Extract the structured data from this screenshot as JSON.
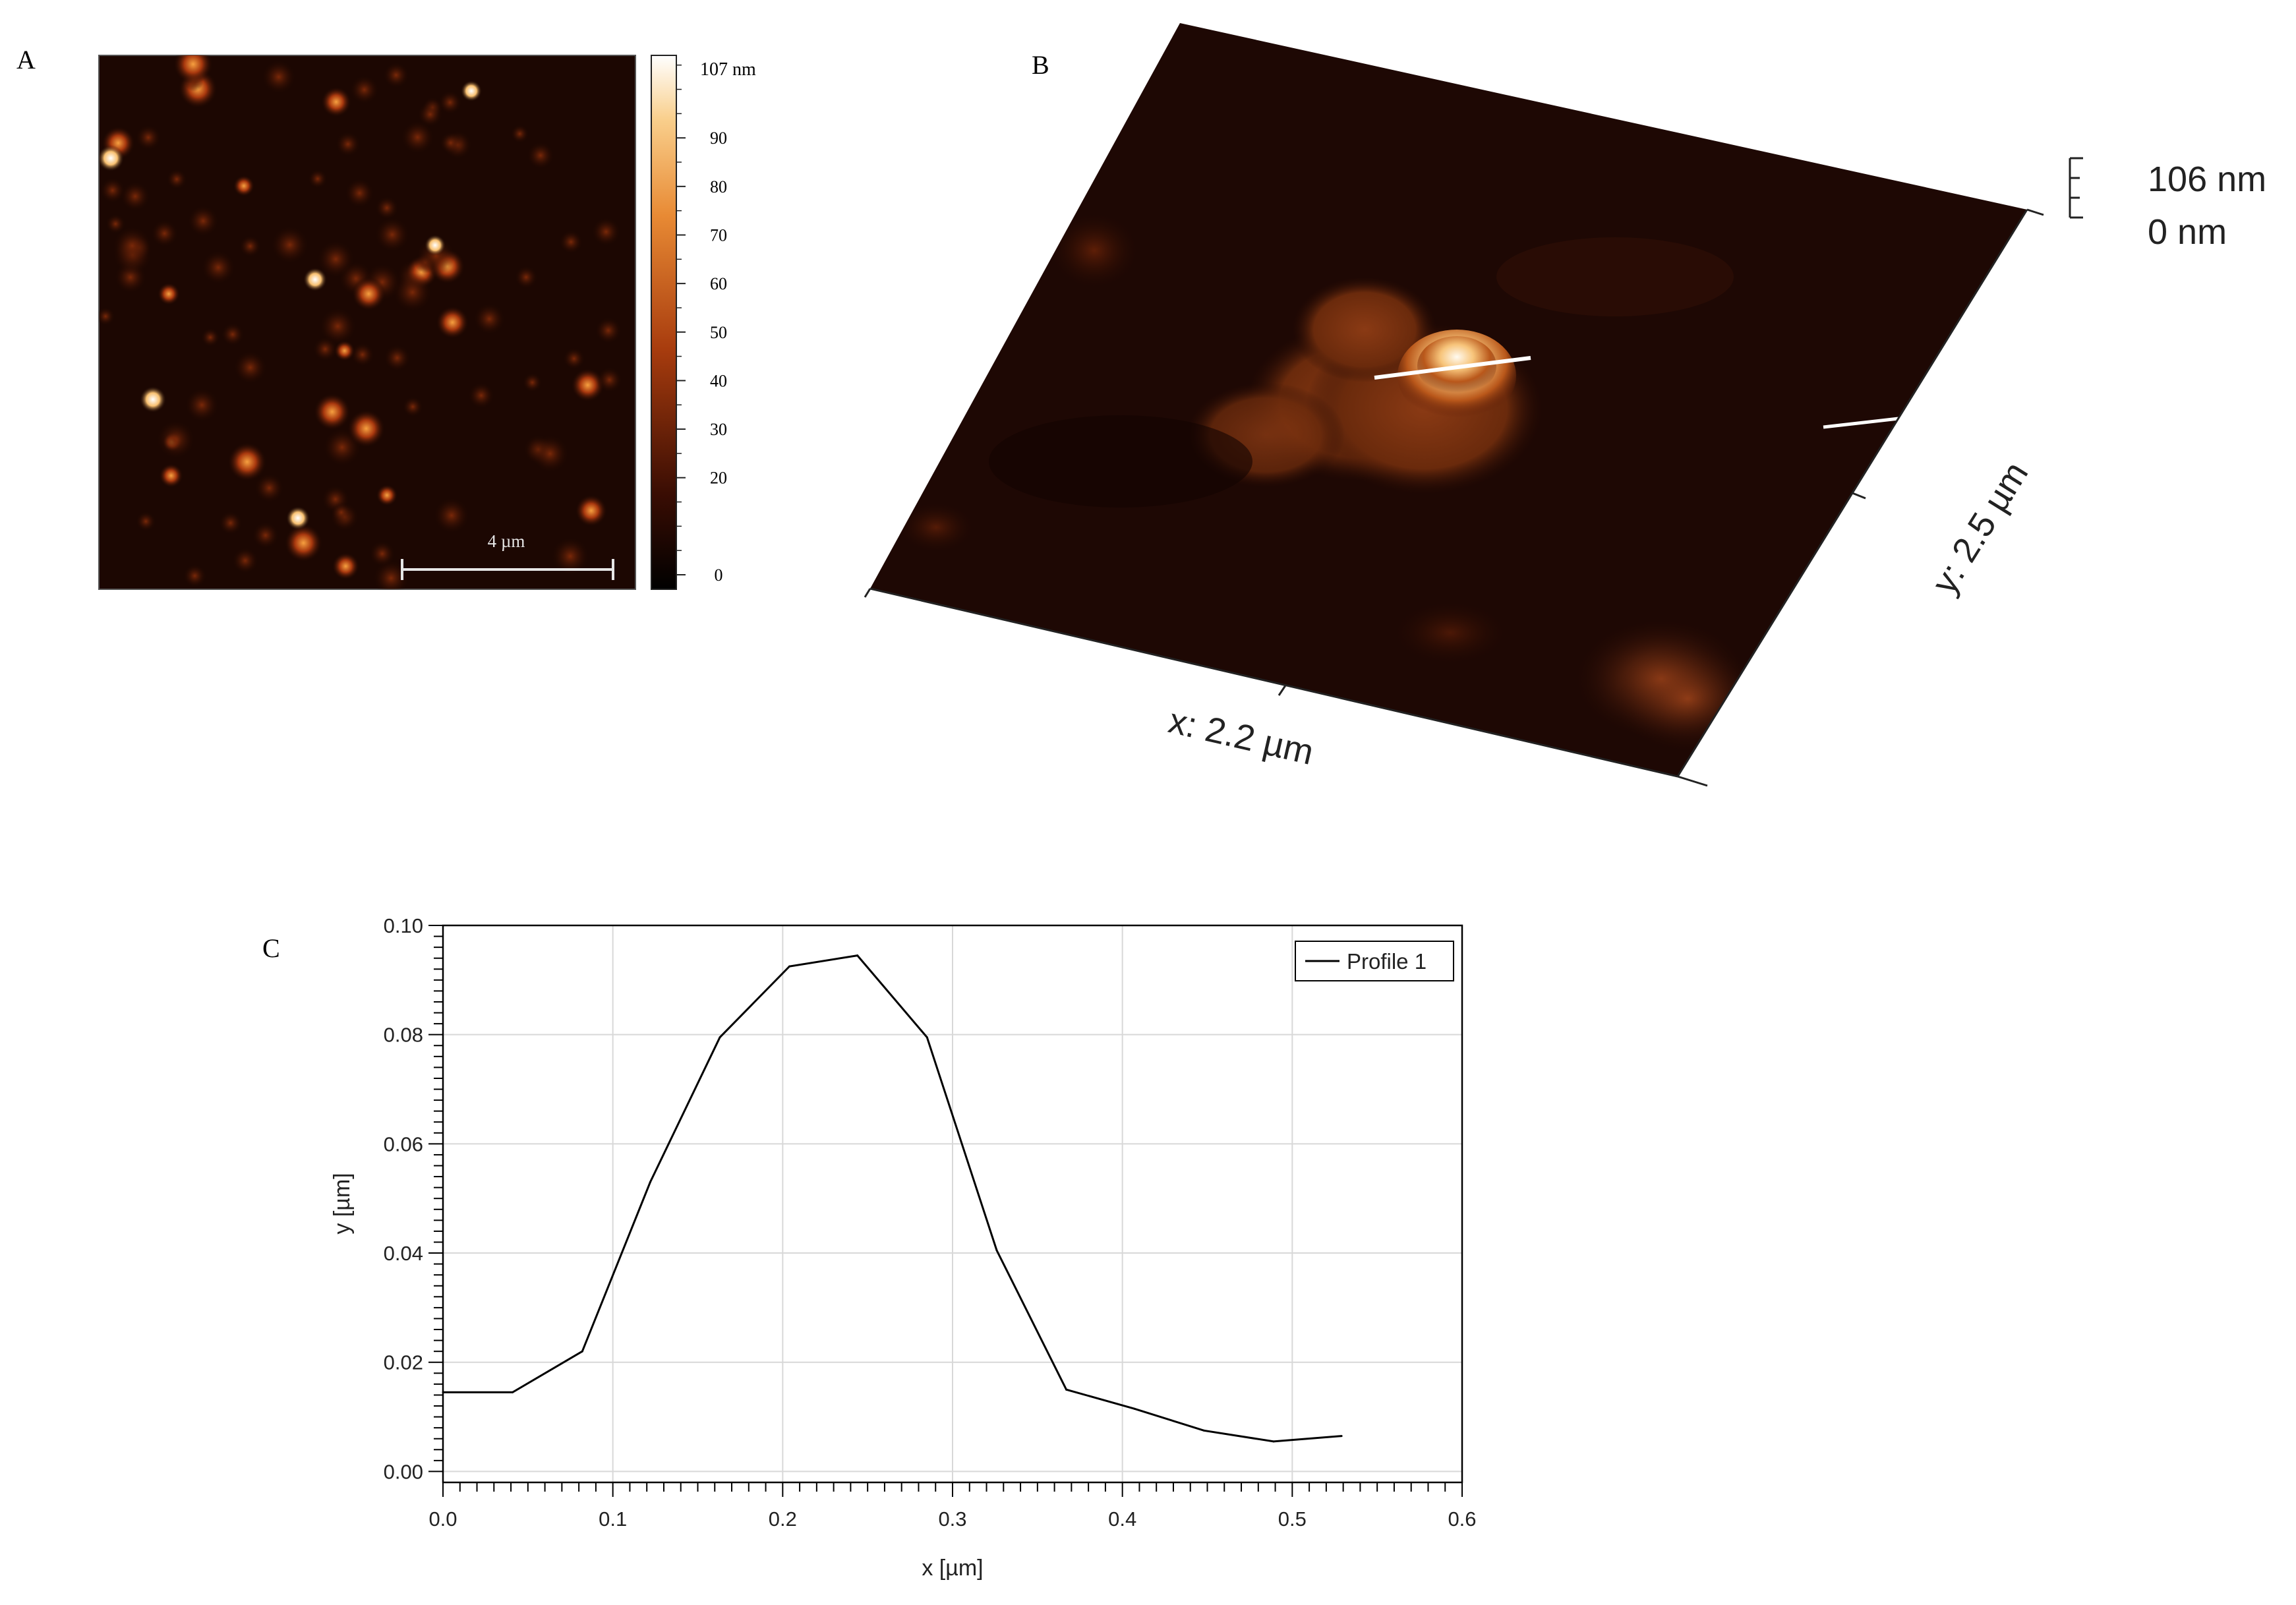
{
  "panel_labels": {
    "a": "A",
    "b": "B",
    "c": "C"
  },
  "panel_a": {
    "scale_bar": "4 µm",
    "colorbar": {
      "max_label": "107 nm",
      "tick_labels": [
        "90",
        "80",
        "70",
        "60",
        "50",
        "40",
        "30",
        "20",
        "0"
      ],
      "tick_values": [
        90,
        80,
        70,
        60,
        50,
        40,
        30,
        20,
        0
      ],
      "max_value": 107
    }
  },
  "panel_b": {
    "z_max": "106 nm",
    "z_min": "0 nm",
    "x_axis": "x: 2.2 µm",
    "y_axis": "y: 2.5 µm"
  },
  "colors": {
    "afm_dark": "#1c0702",
    "afm_mid": "#8a2e0c",
    "afm_bright": "#f6b35a",
    "afm_white": "#fff6e6",
    "line": "#000000"
  },
  "chart_data": {
    "type": "line",
    "xlabel": "x [µm]",
    "ylabel": "y [µm]",
    "xlim": [
      0,
      0.6
    ],
    "ylim": [
      -0.002,
      0.1
    ],
    "xticks": [
      0.0,
      0.1,
      0.2,
      0.3,
      0.4,
      0.5,
      0.6
    ],
    "xtick_labels": [
      "0.0",
      "0.1",
      "0.2",
      "0.3",
      "0.4",
      "0.5",
      "0.6"
    ],
    "yticks": [
      0.0,
      0.02,
      0.04,
      0.06,
      0.08,
      0.1
    ],
    "ytick_labels": [
      "0.00",
      "0.02",
      "0.04",
      "0.06",
      "0.08",
      "0.10"
    ],
    "grid": true,
    "legend": "top-right",
    "series": [
      {
        "name": "Profile 1",
        "x": [
          0.0,
          0.041,
          0.082,
          0.122,
          0.163,
          0.204,
          0.244,
          0.285,
          0.326,
          0.367,
          0.407,
          0.448,
          0.489,
          0.529
        ],
        "y": [
          0.0145,
          0.0145,
          0.022,
          0.053,
          0.0795,
          0.0925,
          0.0945,
          0.0795,
          0.0405,
          0.015,
          0.0115,
          0.0075,
          0.0055,
          0.0065
        ]
      }
    ]
  }
}
